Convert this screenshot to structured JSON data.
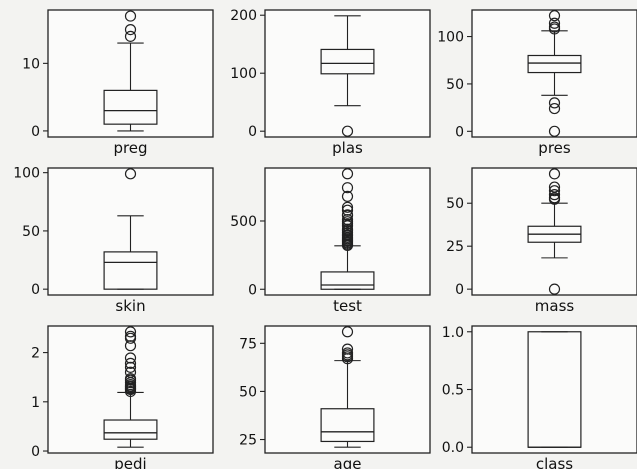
{
  "chart_data": [
    {
      "type": "box",
      "label": "preg",
      "ylim": [
        -0.9,
        17.9
      ],
      "yticks": [
        0,
        10
      ],
      "ytick_labels": [
        "0",
        "10"
      ],
      "whisker_low": 0,
      "q1": 1,
      "median": 3,
      "q3": 6,
      "whisker_high": 13,
      "outliers": [
        14,
        15,
        17
      ]
    },
    {
      "type": "box",
      "label": "plas",
      "ylim": [
        -10,
        209
      ],
      "yticks": [
        0,
        100,
        200
      ],
      "ytick_labels": [
        "0",
        "100",
        "200"
      ],
      "whisker_low": 44,
      "q1": 99,
      "median": 117,
      "q3": 141,
      "whisker_high": 199,
      "outliers": [
        0
      ]
    },
    {
      "type": "box",
      "label": "pres",
      "ylim": [
        -6,
        128
      ],
      "yticks": [
        0,
        50,
        100
      ],
      "ytick_labels": [
        "0",
        "50",
        "100"
      ],
      "whisker_low": 38,
      "q1": 62,
      "median": 72,
      "q3": 80,
      "whisker_high": 106,
      "outliers": [
        0,
        24,
        30,
        108,
        110,
        114,
        122
      ]
    },
    {
      "type": "box",
      "label": "skin",
      "ylim": [
        -5,
        104
      ],
      "yticks": [
        0,
        50,
        100
      ],
      "ytick_labels": [
        "0",
        "50",
        "100"
      ],
      "whisker_low": 0,
      "q1": 0,
      "median": 23,
      "q3": 32,
      "whisker_high": 63,
      "outliers": [
        99
      ]
    },
    {
      "type": "box",
      "label": "test",
      "ylim": [
        -42,
        888
      ],
      "yticks": [
        0,
        500
      ],
      "ytick_labels": [
        "0",
        "500"
      ],
      "whisker_low": 0,
      "q1": 0,
      "median": 31,
      "q3": 127,
      "whisker_high": 318,
      "outliers": [
        321,
        330,
        340,
        350,
        360,
        370,
        380,
        392,
        400,
        415,
        430,
        440,
        465,
        480,
        495,
        510,
        540,
        545,
        579,
        600,
        680,
        744,
        846
      ]
    },
    {
      "type": "box",
      "label": "mass",
      "ylim": [
        -3.4,
        70.5
      ],
      "yticks": [
        0,
        25,
        50
      ],
      "ytick_labels": [
        "0",
        "25",
        "50"
      ],
      "whisker_low": 18.2,
      "q1": 27.3,
      "median": 32,
      "q3": 36.6,
      "whisker_high": 50,
      "outliers": [
        0,
        52.3,
        53.2,
        55,
        57.3,
        59.4,
        67.1
      ]
    },
    {
      "type": "box",
      "label": "pedi",
      "ylim": [
        -0.04,
        2.54
      ],
      "yticks": [
        0,
        1,
        2
      ],
      "ytick_labels": [
        "0",
        "1",
        "2"
      ],
      "whisker_low": 0.078,
      "q1": 0.24,
      "median": 0.37,
      "q3": 0.63,
      "whisker_high": 1.19,
      "outliers": [
        1.21,
        1.25,
        1.27,
        1.3,
        1.32,
        1.35,
        1.39,
        1.44,
        1.47,
        1.6,
        1.7,
        1.78,
        1.89,
        2.14,
        2.29,
        2.33,
        2.42
      ]
    },
    {
      "type": "box",
      "label": "age",
      "ylim": [
        18,
        84
      ],
      "yticks": [
        25,
        50,
        75
      ],
      "ytick_labels": [
        "25",
        "50",
        "75"
      ],
      "whisker_low": 21,
      "q1": 24,
      "median": 29,
      "q3": 41,
      "whisker_high": 66,
      "outliers": [
        67,
        68,
        69,
        70,
        72,
        81
      ]
    },
    {
      "type": "box",
      "label": "class",
      "ylim": [
        -0.05,
        1.05
      ],
      "yticks": [
        0,
        0.5,
        1
      ],
      "ytick_labels": [
        "0.0",
        "0.5",
        "1.0"
      ],
      "whisker_low": 0,
      "q1": 0,
      "median": 0,
      "q3": 1,
      "whisker_high": 1,
      "outliers": []
    }
  ]
}
